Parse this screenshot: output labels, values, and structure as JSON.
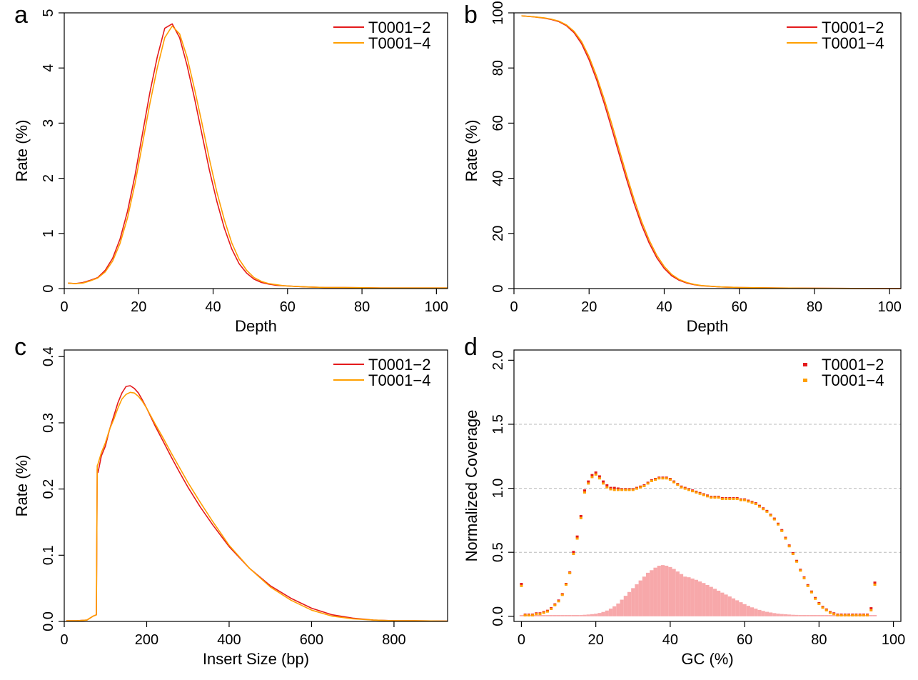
{
  "colors": {
    "series1": "#e41a1c",
    "series2": "#ff9f00",
    "gc_bars": "#f7a8aa",
    "gridline": "#bbbbbb"
  },
  "chart_data": [
    {
      "panel": "a",
      "type": "line",
      "xlabel": "Depth",
      "ylabel": "Rate (%)",
      "xlim": [
        0,
        103
      ],
      "ylim": [
        0,
        5
      ],
      "xticks": [
        0,
        20,
        40,
        60,
        80,
        100
      ],
      "yticks": [
        0,
        1,
        2,
        3,
        4,
        5
      ],
      "legend": "top-right",
      "series": [
        {
          "name": "T0001−2",
          "x": [
            1,
            3,
            5,
            7,
            9,
            11,
            13,
            15,
            17,
            19,
            21,
            23,
            25,
            27,
            29,
            31,
            33,
            35,
            37,
            39,
            41,
            43,
            45,
            47,
            49,
            51,
            53,
            55,
            57,
            59,
            62,
            65,
            70,
            75,
            80,
            85,
            90,
            95,
            100,
            103
          ],
          "y": [
            0.1,
            0.09,
            0.11,
            0.15,
            0.2,
            0.33,
            0.55,
            0.9,
            1.4,
            2.05,
            2.8,
            3.55,
            4.2,
            4.72,
            4.8,
            4.55,
            4.05,
            3.45,
            2.8,
            2.15,
            1.58,
            1.1,
            0.72,
            0.45,
            0.28,
            0.17,
            0.11,
            0.08,
            0.06,
            0.05,
            0.04,
            0.03,
            0.02,
            0.02,
            0.015,
            0.01,
            0.01,
            0.01,
            0.01,
            0.01
          ]
        },
        {
          "name": "T0001−4",
          "x": [
            1,
            3,
            5,
            7,
            9,
            11,
            13,
            15,
            17,
            19,
            21,
            23,
            25,
            27,
            29,
            31,
            33,
            35,
            37,
            39,
            41,
            43,
            45,
            47,
            49,
            51,
            53,
            55,
            57,
            59,
            62,
            65,
            70,
            75,
            80,
            85,
            90,
            95,
            100,
            103
          ],
          "y": [
            0.1,
            0.09,
            0.1,
            0.14,
            0.19,
            0.3,
            0.5,
            0.82,
            1.28,
            1.9,
            2.62,
            3.35,
            4.0,
            4.55,
            4.76,
            4.62,
            4.2,
            3.62,
            3.0,
            2.35,
            1.75,
            1.25,
            0.83,
            0.53,
            0.33,
            0.2,
            0.13,
            0.09,
            0.07,
            0.05,
            0.04,
            0.03,
            0.02,
            0.02,
            0.015,
            0.01,
            0.01,
            0.01,
            0.01,
            0.01
          ]
        }
      ]
    },
    {
      "panel": "b",
      "type": "line",
      "xlabel": "Depth",
      "ylabel": "Rate (%)",
      "xlim": [
        0,
        103
      ],
      "ylim": [
        0,
        100
      ],
      "xticks": [
        0,
        20,
        40,
        60,
        80,
        100
      ],
      "yticks": [
        0,
        20,
        40,
        60,
        80,
        100
      ],
      "legend": "top-right",
      "series": [
        {
          "name": "T0001−2",
          "x": [
            2,
            5,
            8,
            10,
            12,
            14,
            16,
            18,
            20,
            22,
            24,
            26,
            28,
            30,
            32,
            34,
            36,
            38,
            40,
            42,
            44,
            46,
            48,
            50,
            55,
            60,
            70,
            80,
            90,
            103
          ],
          "y": [
            98.9,
            98.6,
            98.1,
            97.6,
            96.8,
            95.3,
            92.8,
            88.8,
            83.0,
            75.7,
            67.3,
            58.2,
            48.8,
            39.5,
            30.8,
            23.0,
            16.5,
            11.2,
            7.3,
            4.6,
            3.0,
            2.0,
            1.4,
            1.0,
            0.6,
            0.4,
            0.2,
            0.1,
            0.05,
            0.02
          ]
        },
        {
          "name": "T0001−4",
          "x": [
            2,
            5,
            8,
            10,
            12,
            14,
            16,
            18,
            20,
            22,
            24,
            26,
            28,
            30,
            32,
            34,
            36,
            38,
            40,
            42,
            44,
            46,
            48,
            50,
            55,
            60,
            70,
            80,
            90,
            103
          ],
          "y": [
            98.9,
            98.6,
            98.2,
            97.7,
            97.0,
            95.6,
            93.3,
            89.6,
            84.1,
            77.0,
            68.8,
            59.9,
            50.5,
            41.1,
            32.3,
            24.3,
            17.6,
            12.1,
            8.0,
            5.1,
            3.3,
            2.2,
            1.5,
            1.1,
            0.6,
            0.4,
            0.2,
            0.1,
            0.05,
            0.02
          ]
        }
      ]
    },
    {
      "panel": "c",
      "type": "line",
      "xlabel": "Insert Size (bp)",
      "ylabel": "Rate (%)",
      "xlim": [
        0,
        930
      ],
      "ylim": [
        0,
        0.41
      ],
      "xticks": [
        0,
        200,
        400,
        600,
        800
      ],
      "yticks": [
        0.0,
        0.1,
        0.2,
        0.3,
        0.4
      ],
      "legend": "top-right",
      "series": [
        {
          "name": "T0001−2",
          "x": [
            5,
            30,
            55,
            70,
            78,
            80,
            82,
            90,
            100,
            110,
            120,
            130,
            140,
            150,
            160,
            170,
            180,
            190,
            200,
            220,
            240,
            260,
            280,
            300,
            330,
            360,
            400,
            450,
            500,
            550,
            600,
            650,
            700,
            750,
            800,
            850,
            930
          ],
          "y": [
            0.001,
            0.001,
            0.002,
            0.008,
            0.01,
            0.23,
            0.225,
            0.25,
            0.265,
            0.29,
            0.31,
            0.33,
            0.345,
            0.355,
            0.356,
            0.352,
            0.345,
            0.334,
            0.322,
            0.296,
            0.272,
            0.248,
            0.225,
            0.203,
            0.173,
            0.146,
            0.113,
            0.08,
            0.054,
            0.035,
            0.02,
            0.01,
            0.005,
            0.002,
            0.001,
            0.001,
            0.0005
          ]
        },
        {
          "name": "T0001−4",
          "x": [
            5,
            30,
            55,
            70,
            78,
            80,
            82,
            90,
            100,
            110,
            120,
            130,
            140,
            150,
            160,
            170,
            180,
            190,
            200,
            220,
            240,
            260,
            280,
            300,
            330,
            360,
            400,
            450,
            500,
            550,
            600,
            650,
            700,
            750,
            800,
            850,
            930
          ],
          "y": [
            0.001,
            0.001,
            0.002,
            0.008,
            0.01,
            0.235,
            0.238,
            0.255,
            0.27,
            0.29,
            0.305,
            0.322,
            0.336,
            0.343,
            0.346,
            0.345,
            0.34,
            0.332,
            0.322,
            0.299,
            0.277,
            0.254,
            0.232,
            0.21,
            0.18,
            0.151,
            0.115,
            0.08,
            0.052,
            0.032,
            0.017,
            0.008,
            0.004,
            0.002,
            0.001,
            0.001,
            0.0005
          ]
        }
      ]
    },
    {
      "panel": "d",
      "type": "scatter",
      "xlabel": "GC (%)",
      "ylabel": "Normalized Coverage",
      "xlim": [
        -2,
        102
      ],
      "ylim": [
        -0.04,
        2.08
      ],
      "xticks": [
        0,
        20,
        40,
        60,
        80,
        100
      ],
      "yticks": [
        0.0,
        0.5,
        1.0,
        1.5,
        2.0
      ],
      "grid_lines_y": [
        0.5,
        1.0,
        1.5
      ],
      "grid": "dashed horizontal",
      "legend": "top-right",
      "series": [
        {
          "name": "T0001−2",
          "x": [
            0,
            1,
            2,
            3,
            4,
            5,
            6,
            7,
            8,
            9,
            10,
            11,
            12,
            13,
            14,
            15,
            16,
            17,
            18,
            19,
            20,
            21,
            22,
            23,
            24,
            25,
            26,
            27,
            28,
            29,
            30,
            31,
            32,
            33,
            34,
            35,
            36,
            37,
            38,
            39,
            40,
            41,
            42,
            43,
            44,
            45,
            46,
            47,
            48,
            49,
            50,
            51,
            52,
            53,
            54,
            55,
            56,
            57,
            58,
            59,
            60,
            61,
            62,
            63,
            64,
            65,
            66,
            67,
            68,
            69,
            70,
            71,
            72,
            73,
            74,
            75,
            76,
            77,
            78,
            79,
            80,
            81,
            82,
            83,
            84,
            85,
            86,
            87,
            88,
            89,
            90,
            91,
            92,
            93,
            94,
            95
          ],
          "y": [
            0.25,
            0.01,
            0.01,
            0.01,
            0.02,
            0.02,
            0.03,
            0.04,
            0.06,
            0.09,
            0.12,
            0.17,
            0.25,
            0.34,
            0.5,
            0.62,
            0.78,
            0.98,
            1.05,
            1.1,
            1.12,
            1.09,
            1.05,
            1.02,
            1.0,
            1.0,
            0.995,
            0.99,
            0.99,
            0.99,
            0.99,
            1.0,
            1.01,
            1.02,
            1.04,
            1.06,
            1.07,
            1.08,
            1.08,
            1.08,
            1.07,
            1.05,
            1.03,
            1.01,
            1.0,
            0.99,
            0.98,
            0.97,
            0.96,
            0.95,
            0.94,
            0.93,
            0.93,
            0.93,
            0.92,
            0.92,
            0.92,
            0.92,
            0.92,
            0.91,
            0.91,
            0.9,
            0.89,
            0.88,
            0.86,
            0.84,
            0.82,
            0.79,
            0.76,
            0.72,
            0.67,
            0.61,
            0.55,
            0.49,
            0.43,
            0.36,
            0.3,
            0.24,
            0.19,
            0.14,
            0.1,
            0.07,
            0.05,
            0.03,
            0.02,
            0.01,
            0.01,
            0.01,
            0.01,
            0.01,
            0.01,
            0.01,
            0.01,
            0.01,
            0.06,
            0.26
          ]
        },
        {
          "name": "T0001−4",
          "x": [
            0,
            1,
            2,
            3,
            4,
            5,
            6,
            7,
            8,
            9,
            10,
            11,
            12,
            13,
            14,
            15,
            16,
            17,
            18,
            19,
            20,
            21,
            22,
            23,
            24,
            25,
            26,
            27,
            28,
            29,
            30,
            31,
            32,
            33,
            34,
            35,
            36,
            37,
            38,
            39,
            40,
            41,
            42,
            43,
            44,
            45,
            46,
            47,
            48,
            49,
            50,
            51,
            52,
            53,
            54,
            55,
            56,
            57,
            58,
            59,
            60,
            61,
            62,
            63,
            64,
            65,
            66,
            67,
            68,
            69,
            70,
            71,
            72,
            73,
            74,
            75,
            76,
            77,
            78,
            79,
            80,
            81,
            82,
            83,
            84,
            85,
            86,
            87,
            88,
            89,
            90,
            91,
            92,
            93,
            94,
            95
          ],
          "y": [
            0.24,
            0.01,
            0.01,
            0.01,
            0.02,
            0.02,
            0.03,
            0.04,
            0.06,
            0.09,
            0.12,
            0.17,
            0.25,
            0.34,
            0.49,
            0.61,
            0.77,
            0.97,
            1.04,
            1.09,
            1.11,
            1.08,
            1.04,
            1.01,
            0.995,
            0.99,
            0.99,
            0.99,
            0.99,
            0.99,
            0.99,
            1.0,
            1.01,
            1.02,
            1.04,
            1.06,
            1.07,
            1.08,
            1.08,
            1.08,
            1.07,
            1.05,
            1.03,
            1.01,
            1.0,
            0.99,
            0.98,
            0.97,
            0.96,
            0.95,
            0.94,
            0.93,
            0.93,
            0.93,
            0.92,
            0.92,
            0.92,
            0.92,
            0.92,
            0.91,
            0.91,
            0.9,
            0.89,
            0.88,
            0.86,
            0.84,
            0.82,
            0.79,
            0.76,
            0.72,
            0.67,
            0.61,
            0.55,
            0.49,
            0.43,
            0.36,
            0.3,
            0.24,
            0.19,
            0.14,
            0.1,
            0.07,
            0.05,
            0.03,
            0.02,
            0.01,
            0.01,
            0.01,
            0.01,
            0.01,
            0.01,
            0.01,
            0.01,
            0.01,
            0.05,
            0.25
          ]
        }
      ],
      "gc_distribution": {
        "x": [
          0,
          1,
          2,
          3,
          4,
          5,
          6,
          7,
          8,
          9,
          10,
          11,
          12,
          13,
          14,
          15,
          16,
          17,
          18,
          19,
          20,
          21,
          22,
          23,
          24,
          25,
          26,
          27,
          28,
          29,
          30,
          31,
          32,
          33,
          34,
          35,
          36,
          37,
          38,
          39,
          40,
          41,
          42,
          43,
          44,
          45,
          46,
          47,
          48,
          49,
          50,
          51,
          52,
          53,
          54,
          55,
          56,
          57,
          58,
          59,
          60,
          61,
          62,
          63,
          64,
          65,
          66,
          67,
          68,
          69,
          70,
          71,
          72,
          73,
          74,
          75,
          76,
          77,
          78,
          79,
          80,
          81,
          82,
          83,
          84,
          85,
          86,
          87,
          88,
          89,
          90,
          91,
          92,
          93,
          94,
          95
        ],
        "y": [
          0.01,
          0.01,
          0.01,
          0.01,
          0.01,
          0.01,
          0.01,
          0.01,
          0.01,
          0.01,
          0.01,
          0.01,
          0.01,
          0.01,
          0.01,
          0.01,
          0.01,
          0.012,
          0.014,
          0.017,
          0.02,
          0.026,
          0.034,
          0.045,
          0.06,
          0.078,
          0.1,
          0.13,
          0.16,
          0.19,
          0.22,
          0.25,
          0.28,
          0.31,
          0.34,
          0.36,
          0.38,
          0.395,
          0.4,
          0.395,
          0.385,
          0.37,
          0.35,
          0.33,
          0.31,
          0.305,
          0.295,
          0.285,
          0.272,
          0.26,
          0.245,
          0.23,
          0.215,
          0.2,
          0.185,
          0.17,
          0.155,
          0.14,
          0.125,
          0.11,
          0.095,
          0.082,
          0.07,
          0.06,
          0.05,
          0.042,
          0.035,
          0.03,
          0.025,
          0.021,
          0.018,
          0.016,
          0.014,
          0.012,
          0.011,
          0.01,
          0.01,
          0.01,
          0.01,
          0.01,
          0.01,
          0.01,
          0.01,
          0.01,
          0.01,
          0.01,
          0.01,
          0.01,
          0.01,
          0.01,
          0.01,
          0.01,
          0.01,
          0.01,
          0.01,
          0.01
        ]
      }
    }
  ]
}
